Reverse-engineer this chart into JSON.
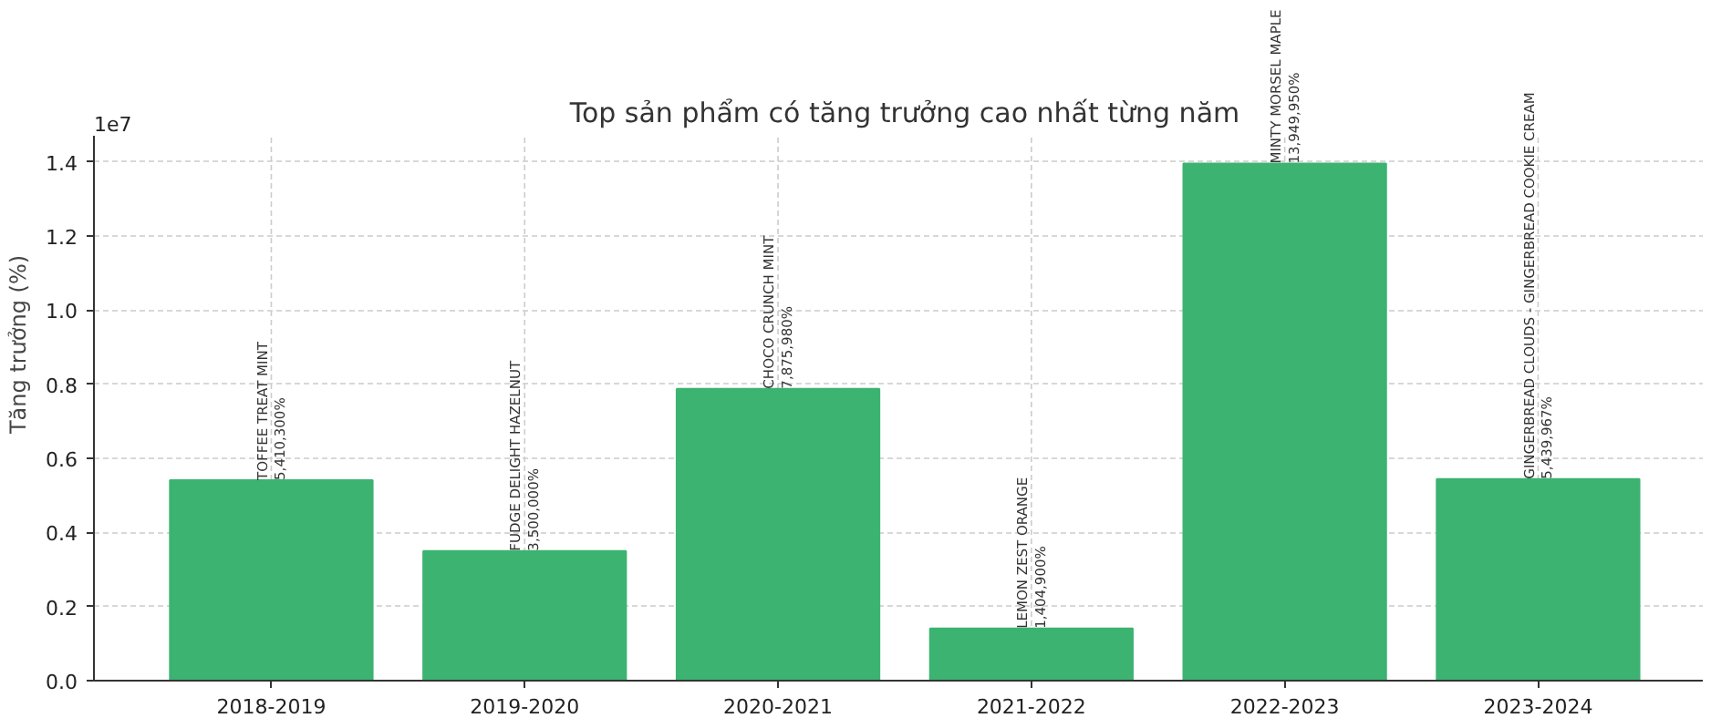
{
  "chart_data": {
    "type": "bar",
    "title": "Top sản phẩm có tăng trưởng cao nhất từng năm",
    "ylabel": "Tăng trưởng (%)",
    "annotations": [
      "1e7"
    ],
    "categories": [
      "2018-2019",
      "2019-2020",
      "2020-2021",
      "2021-2022",
      "2022-2023",
      "2023-2024"
    ],
    "values": [
      0.54103,
      0.35,
      0.787598,
      0.14049,
      1.394995,
      0.5439967
    ],
    "value_labels": [
      "TOFFEE TREAT MINT\n5,410,300%",
      "FUDGE DELIGHT HAZELNUT\n3,500,000%",
      "CHOCO CRUNCH MINT\n7,875,980%",
      "LEMON ZEST ORANGE\n1,404,900%",
      "MINTY MORSEL MAPLE\n13,949,950%",
      "GINGERBREAD CLOUDS - GINGERBREAD COOKIE CREAM\n5,439,967%"
    ],
    "color": "#3cb371",
    "ylim": [
      0,
      1.468
    ],
    "yticks": [
      {
        "value": 0,
        "label": "0.0"
      },
      0.2,
      0.4,
      0.6,
      0.8,
      {
        "value": 1,
        "label": "1.0"
      },
      1.2,
      1.4
    ],
    "grid": true
  }
}
